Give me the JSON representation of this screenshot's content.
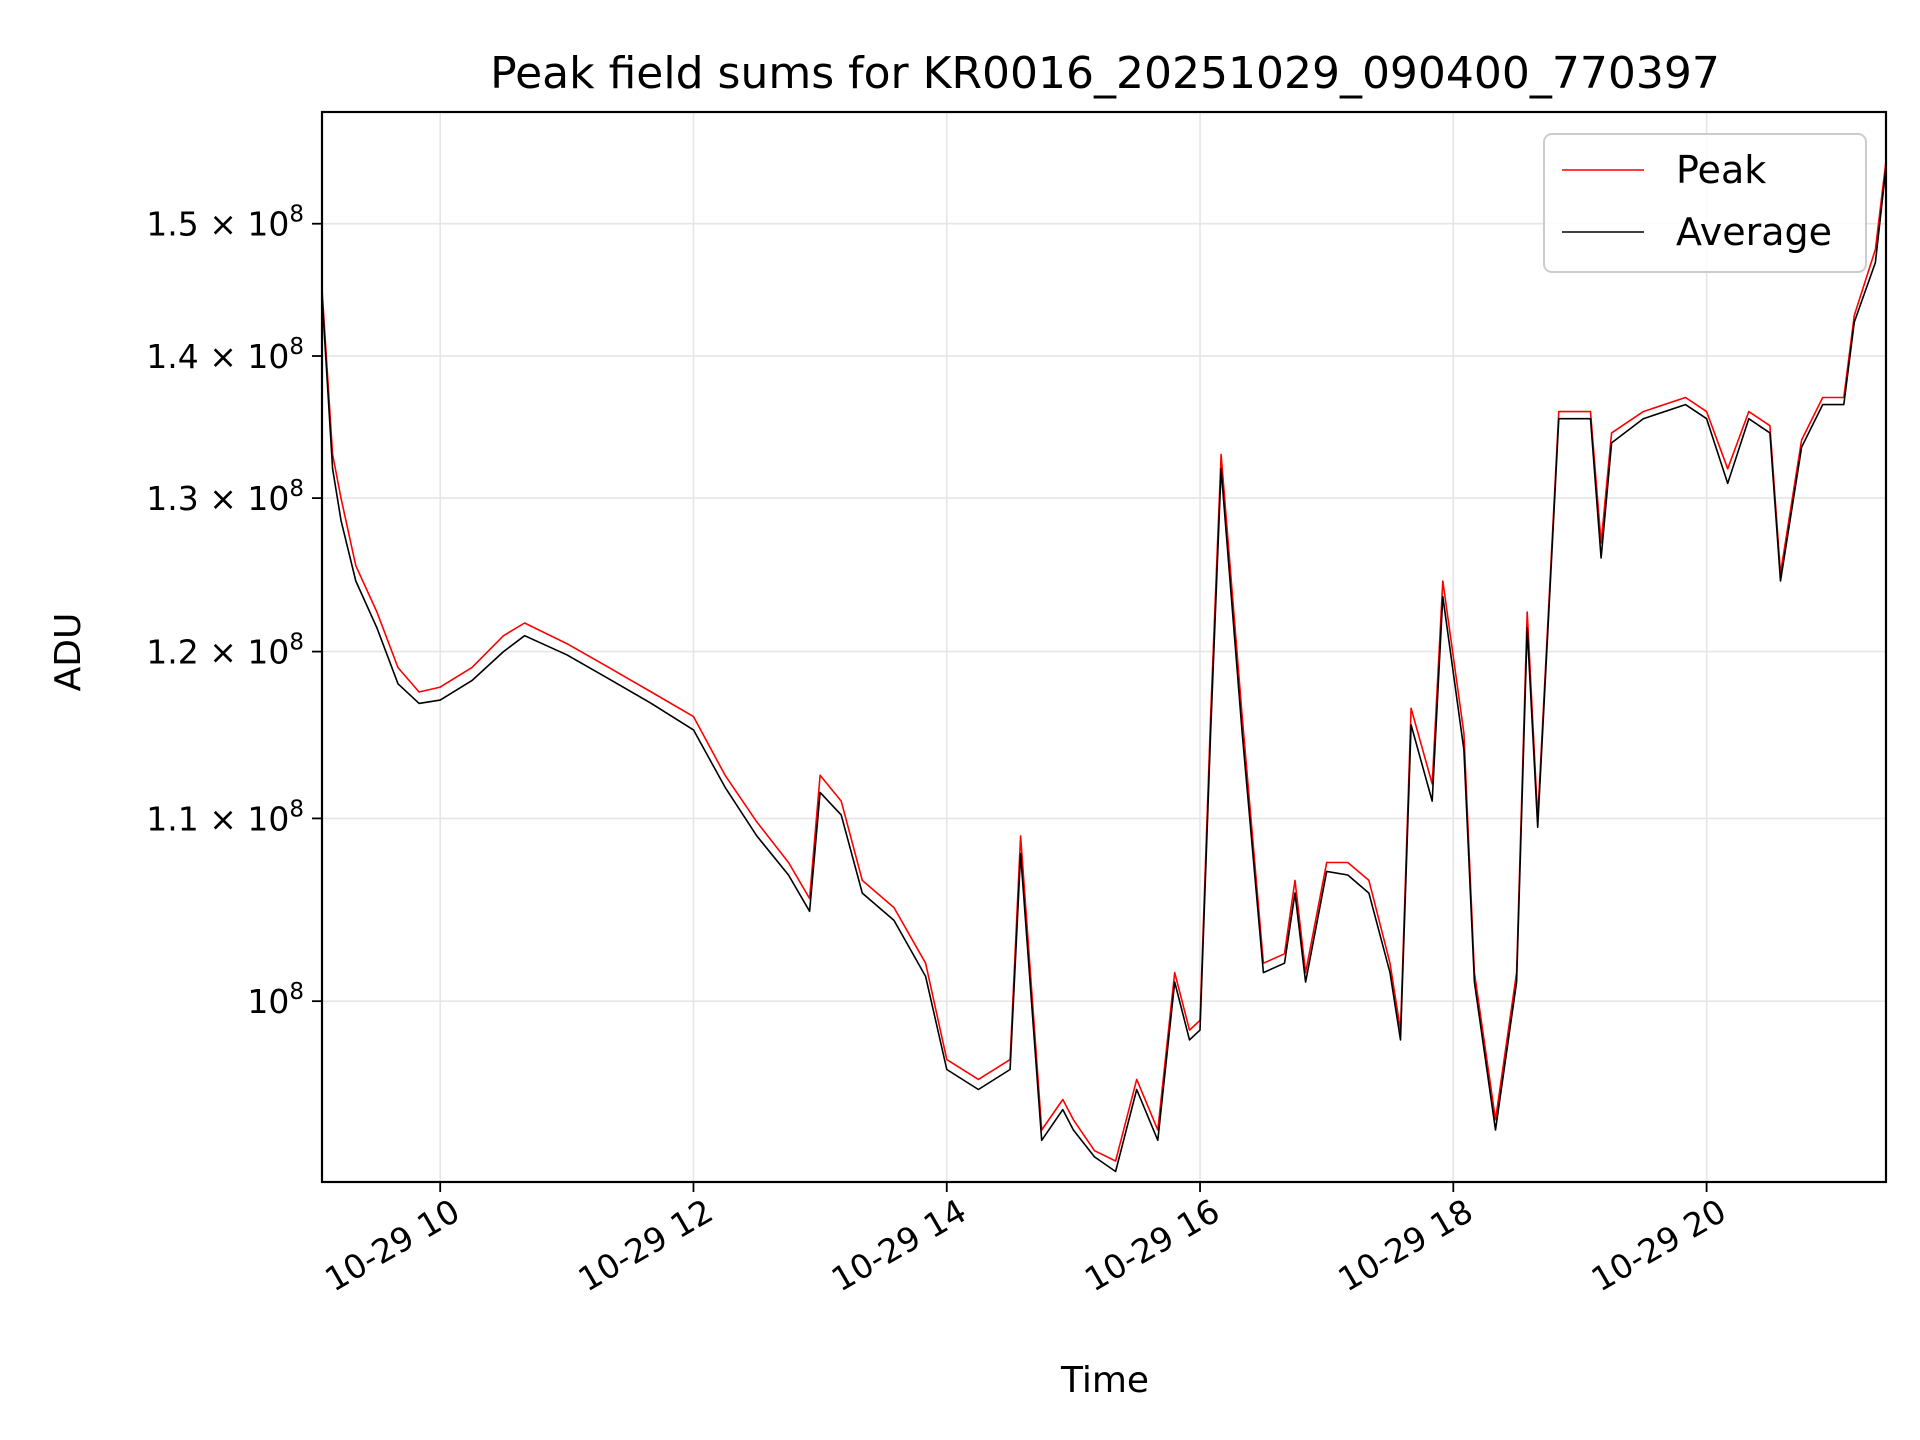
{
  "chart_data": {
    "type": "line",
    "title": "Peak field sums for KR0016_20251029_090400_770397",
    "xlabel": "Time",
    "ylabel": "ADU",
    "xaxis": {
      "type": "time",
      "range": [
        "2025-10-29 09:04",
        "2025-10-29 21:25"
      ],
      "ticks": [
        {
          "value": "2025-10-29 10:00",
          "label": "10-29 10"
        },
        {
          "value": "2025-10-29 12:00",
          "label": "10-29 12"
        },
        {
          "value": "2025-10-29 14:00",
          "label": "10-29 14"
        },
        {
          "value": "2025-10-29 16:00",
          "label": "10-29 16"
        },
        {
          "value": "2025-10-29 18:00",
          "label": "10-29 18"
        },
        {
          "value": "2025-10-29 20:00",
          "label": "10-29 20"
        }
      ]
    },
    "yaxis": {
      "scale": "log",
      "range": [
        91000000.0,
        159000000.0
      ],
      "ticks": [
        {
          "value": 100000000.0,
          "mant": "10",
          "exp": "8"
        },
        {
          "value": 110000000.0,
          "mant": "1.1 × 10",
          "exp": "8"
        },
        {
          "value": 120000000.0,
          "mant": "1.2 × 10",
          "exp": "8"
        },
        {
          "value": 130000000.0,
          "mant": "1.3 × 10",
          "exp": "8"
        },
        {
          "value": 140000000.0,
          "mant": "1.4 × 10",
          "exp": "8"
        },
        {
          "value": 150000000.0,
          "mant": "1.5 × 10",
          "exp": "8"
        }
      ]
    },
    "grid": true,
    "legend_position": "top-right",
    "series": [
      {
        "name": "Peak",
        "color": "#ff0000",
        "points": [
          [
            "2025-10-29 09:04",
            145000000.0
          ],
          [
            "2025-10-29 09:09",
            133000000.0
          ],
          [
            "2025-10-29 09:13",
            130000000.0
          ],
          [
            "2025-10-29 09:20",
            125500000.0
          ],
          [
            "2025-10-29 09:30",
            122500000.0
          ],
          [
            "2025-10-29 09:40",
            119000000.0
          ],
          [
            "2025-10-29 09:50",
            117500000.0
          ],
          [
            "2025-10-29 10:00",
            117800000.0
          ],
          [
            "2025-10-29 10:15",
            119000000.0
          ],
          [
            "2025-10-29 10:30",
            121000000.0
          ],
          [
            "2025-10-29 10:40",
            121800000.0
          ],
          [
            "2025-10-29 11:00",
            120500000.0
          ],
          [
            "2025-10-29 11:20",
            119000000.0
          ],
          [
            "2025-10-29 11:40",
            117500000.0
          ],
          [
            "2025-10-29 12:00",
            116000000.0
          ],
          [
            "2025-10-29 12:15",
            112500000.0
          ],
          [
            "2025-10-29 12:30",
            109800000.0
          ],
          [
            "2025-10-29 12:45",
            107500000.0
          ],
          [
            "2025-10-29 12:55",
            105500000.0
          ],
          [
            "2025-10-29 13:00",
            112500000.0
          ],
          [
            "2025-10-29 13:10",
            111000000.0
          ],
          [
            "2025-10-29 13:20",
            106500000.0
          ],
          [
            "2025-10-29 13:35",
            105000000.0
          ],
          [
            "2025-10-29 13:50",
            102000000.0
          ],
          [
            "2025-10-29 14:00",
            97000000.0
          ],
          [
            "2025-10-29 14:15",
            96000000.0
          ],
          [
            "2025-10-29 14:30",
            97000000.0
          ],
          [
            "2025-10-29 14:35",
            109000000.0
          ],
          [
            "2025-10-29 14:45",
            93500000.0
          ],
          [
            "2025-10-29 14:55",
            95000000.0
          ],
          [
            "2025-10-29 15:00",
            94000000.0
          ],
          [
            "2025-10-29 15:10",
            92500000.0
          ],
          [
            "2025-10-29 15:20",
            92000000.0
          ],
          [
            "2025-10-29 15:30",
            96000000.0
          ],
          [
            "2025-10-29 15:40",
            93500000.0
          ],
          [
            "2025-10-29 15:48",
            101500000.0
          ],
          [
            "2025-10-29 15:55",
            98500000.0
          ],
          [
            "2025-10-29 16:00",
            99000000.0
          ],
          [
            "2025-10-29 16:05",
            116000000.0
          ],
          [
            "2025-10-29 16:10",
            133000000.0
          ],
          [
            "2025-10-29 16:20",
            116000000.0
          ],
          [
            "2025-10-29 16:30",
            102000000.0
          ],
          [
            "2025-10-29 16:40",
            102500000.0
          ],
          [
            "2025-10-29 16:45",
            106500000.0
          ],
          [
            "2025-10-29 16:50",
            101500000.0
          ],
          [
            "2025-10-29 17:00",
            107500000.0
          ],
          [
            "2025-10-29 17:10",
            107500000.0
          ],
          [
            "2025-10-29 17:20",
            106500000.0
          ],
          [
            "2025-10-29 17:30",
            102000000.0
          ],
          [
            "2025-10-29 17:35",
            98500000.0
          ],
          [
            "2025-10-29 17:40",
            116500000.0
          ],
          [
            "2025-10-29 17:50",
            112000000.0
          ],
          [
            "2025-10-29 17:55",
            124500000.0
          ],
          [
            "2025-10-29 18:05",
            115000000.0
          ],
          [
            "2025-10-29 18:10",
            101500000.0
          ],
          [
            "2025-10-29 18:20",
            94000000.0
          ],
          [
            "2025-10-29 18:30",
            101500000.0
          ],
          [
            "2025-10-29 18:35",
            122500000.0
          ],
          [
            "2025-10-29 18:40",
            110000000.0
          ],
          [
            "2025-10-29 18:50",
            136000000.0
          ],
          [
            "2025-10-29 19:05",
            136000000.0
          ],
          [
            "2025-10-29 19:10",
            127000000.0
          ],
          [
            "2025-10-29 19:15",
            134500000.0
          ],
          [
            "2025-10-29 19:30",
            136000000.0
          ],
          [
            "2025-10-29 19:50",
            137000000.0
          ],
          [
            "2025-10-29 20:00",
            136000000.0
          ],
          [
            "2025-10-29 20:10",
            132000000.0
          ],
          [
            "2025-10-29 20:20",
            136000000.0
          ],
          [
            "2025-10-29 20:30",
            135000000.0
          ],
          [
            "2025-10-29 20:35",
            125000000.0
          ],
          [
            "2025-10-29 20:45",
            134000000.0
          ],
          [
            "2025-10-29 20:55",
            137000000.0
          ],
          [
            "2025-10-29 21:05",
            137000000.0
          ],
          [
            "2025-10-29 21:10",
            143000000.0
          ],
          [
            "2025-10-29 21:20",
            148000000.0
          ],
          [
            "2025-10-29 21:25",
            155000000.0
          ]
        ]
      },
      {
        "name": "Average",
        "color": "#000000",
        "points": [
          [
            "2025-10-29 09:04",
            144500000.0
          ],
          [
            "2025-10-29 09:09",
            132000000.0
          ],
          [
            "2025-10-29 09:13",
            128500000.0
          ],
          [
            "2025-10-29 09:20",
            124500000.0
          ],
          [
            "2025-10-29 09:30",
            121500000.0
          ],
          [
            "2025-10-29 09:40",
            118000000.0
          ],
          [
            "2025-10-29 09:50",
            116800000.0
          ],
          [
            "2025-10-29 10:00",
            117000000.0
          ],
          [
            "2025-10-29 10:15",
            118200000.0
          ],
          [
            "2025-10-29 10:30",
            120000000.0
          ],
          [
            "2025-10-29 10:40",
            121000000.0
          ],
          [
            "2025-10-29 11:00",
            119800000.0
          ],
          [
            "2025-10-29 11:20",
            118300000.0
          ],
          [
            "2025-10-29 11:40",
            116800000.0
          ],
          [
            "2025-10-29 12:00",
            115200000.0
          ],
          [
            "2025-10-29 12:15",
            111800000.0
          ],
          [
            "2025-10-29 12:30",
            109000000.0
          ],
          [
            "2025-10-29 12:45",
            106800000.0
          ],
          [
            "2025-10-29 12:55",
            104800000.0
          ],
          [
            "2025-10-29 13:00",
            111500000.0
          ],
          [
            "2025-10-29 13:10",
            110200000.0
          ],
          [
            "2025-10-29 13:20",
            105800000.0
          ],
          [
            "2025-10-29 13:35",
            104300000.0
          ],
          [
            "2025-10-29 13:50",
            101300000.0
          ],
          [
            "2025-10-29 14:00",
            96500000.0
          ],
          [
            "2025-10-29 14:15",
            95500000.0
          ],
          [
            "2025-10-29 14:30",
            96500000.0
          ],
          [
            "2025-10-29 14:35",
            108000000.0
          ],
          [
            "2025-10-29 14:45",
            93000000.0
          ],
          [
            "2025-10-29 14:55",
            94500000.0
          ],
          [
            "2025-10-29 15:00",
            93500000.0
          ],
          [
            "2025-10-29 15:10",
            92200000.0
          ],
          [
            "2025-10-29 15:20",
            91500000.0
          ],
          [
            "2025-10-29 15:30",
            95500000.0
          ],
          [
            "2025-10-29 15:40",
            93000000.0
          ],
          [
            "2025-10-29 15:48",
            101000000.0
          ],
          [
            "2025-10-29 15:55",
            98000000.0
          ],
          [
            "2025-10-29 16:00",
            98500000.0
          ],
          [
            "2025-10-29 16:05",
            115000000.0
          ],
          [
            "2025-10-29 16:10",
            132000000.0
          ],
          [
            "2025-10-29 16:20",
            115000000.0
          ],
          [
            "2025-10-29 16:30",
            101500000.0
          ],
          [
            "2025-10-29 16:40",
            102000000.0
          ],
          [
            "2025-10-29 16:45",
            105800000.0
          ],
          [
            "2025-10-29 16:50",
            101000000.0
          ],
          [
            "2025-10-29 17:00",
            107000000.0
          ],
          [
            "2025-10-29 17:10",
            106800000.0
          ],
          [
            "2025-10-29 17:20",
            105800000.0
          ],
          [
            "2025-10-29 17:30",
            101500000.0
          ],
          [
            "2025-10-29 17:35",
            98000000.0
          ],
          [
            "2025-10-29 17:40",
            115500000.0
          ],
          [
            "2025-10-29 17:50",
            111000000.0
          ],
          [
            "2025-10-29 17:55",
            123500000.0
          ],
          [
            "2025-10-29 18:05",
            114000000.0
          ],
          [
            "2025-10-29 18:10",
            101000000.0
          ],
          [
            "2025-10-29 18:20",
            93500000.0
          ],
          [
            "2025-10-29 18:30",
            101000000.0
          ],
          [
            "2025-10-29 18:35",
            121500000.0
          ],
          [
            "2025-10-29 18:40",
            109500000.0
          ],
          [
            "2025-10-29 18:50",
            135500000.0
          ],
          [
            "2025-10-29 19:05",
            135500000.0
          ],
          [
            "2025-10-29 19:10",
            126000000.0
          ],
          [
            "2025-10-29 19:15",
            133800000.0
          ],
          [
            "2025-10-29 19:30",
            135500000.0
          ],
          [
            "2025-10-29 19:50",
            136500000.0
          ],
          [
            "2025-10-29 20:00",
            135500000.0
          ],
          [
            "2025-10-29 20:10",
            131000000.0
          ],
          [
            "2025-10-29 20:20",
            135500000.0
          ],
          [
            "2025-10-29 20:30",
            134500000.0
          ],
          [
            "2025-10-29 20:35",
            124500000.0
          ],
          [
            "2025-10-29 20:45",
            133500000.0
          ],
          [
            "2025-10-29 20:55",
            136500000.0
          ],
          [
            "2025-10-29 21:05",
            136500000.0
          ],
          [
            "2025-10-29 21:10",
            142500000.0
          ],
          [
            "2025-10-29 21:20",
            147000000.0
          ],
          [
            "2025-10-29 21:25",
            154500000.0
          ]
        ]
      }
    ]
  }
}
